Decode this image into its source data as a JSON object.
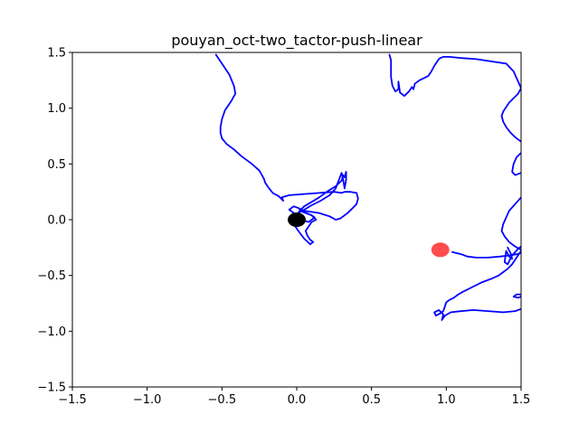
{
  "chart_data": {
    "type": "line",
    "title": "pouyan_oct-two_tactor-push-linear",
    "xlabel": "",
    "ylabel": "",
    "xlim": [
      -1.5,
      1.5
    ],
    "ylim": [
      -1.5,
      1.5
    ],
    "xticks": [
      -1.5,
      -1.0,
      -0.5,
      0.0,
      0.5,
      1.0,
      1.5
    ],
    "yticks": [
      -1.5,
      -1.0,
      -0.5,
      0.0,
      0.5,
      1.0,
      1.5
    ],
    "xtick_labels": [
      "−1.5",
      "−1.0",
      "−0.5",
      "0.0",
      "0.5",
      "1.0",
      "1.5"
    ],
    "ytick_labels": [
      "−1.5",
      "−1.0",
      "−0.5",
      "0.0",
      "0.5",
      "1.0",
      "1.5"
    ],
    "grid": false,
    "line_color": "#0000ff",
    "series": [
      {
        "x": [
          -0.54,
          -0.5,
          -0.45,
          -0.42,
          -0.41,
          -0.44,
          -0.48,
          -0.5,
          -0.51,
          -0.51,
          -0.5,
          -0.47,
          -0.42,
          -0.37,
          -0.3,
          -0.25,
          -0.22,
          -0.21,
          -0.19,
          -0.16,
          -0.12,
          -0.09,
          -0.1,
          -0.05,
          0.05,
          0.15,
          0.25,
          0.3,
          0.32,
          0.36,
          0.4,
          0.41,
          0.4,
          0.37,
          0.34,
          0.31,
          0.29,
          0.26,
          0.22,
          0.15,
          0.05,
          0.02,
          0.04,
          0.1,
          0.12,
          0.1,
          0.08,
          0.05,
          0.02,
          -0.02,
          -0.05
        ],
        "y": [
          1.48,
          1.4,
          1.3,
          1.2,
          1.13,
          1.06,
          0.98,
          0.9,
          0.83,
          0.78,
          0.73,
          0.68,
          0.63,
          0.57,
          0.5,
          0.44,
          0.37,
          0.33,
          0.29,
          0.24,
          0.21,
          0.17,
          0.2,
          0.22,
          0.23,
          0.24,
          0.25,
          0.24,
          0.25,
          0.25,
          0.24,
          0.19,
          0.14,
          0.1,
          0.06,
          0.03,
          0.01,
          0.0,
          0.03,
          0.06,
          0.08,
          0.09,
          0.07,
          0.04,
          0.02,
          0.0,
          -0.02,
          -0.01,
          0.02,
          0.06,
          0.09
        ]
      },
      {
        "x": [
          -0.05,
          -0.02,
          0.02,
          0.05,
          0.1,
          0.13,
          0.1,
          0.08,
          0.06,
          0.07,
          0.09,
          0.11,
          0.09,
          0.05,
          0.01,
          -0.02
        ],
        "y": [
          0.09,
          0.12,
          0.1,
          0.07,
          0.04,
          0.0,
          -0.02,
          -0.06,
          -0.1,
          -0.14,
          -0.18,
          -0.2,
          -0.22,
          -0.17,
          -0.1,
          -0.04
        ]
      },
      {
        "x": [
          0.0,
          0.02,
          0.05,
          0.1,
          0.15,
          0.2,
          0.26,
          0.3,
          0.31,
          0.32,
          0.33,
          0.33,
          0.32,
          0.31,
          0.3,
          0.28,
          0.26,
          0.22,
          0.16,
          0.1,
          0.05,
          0.01
        ],
        "y": [
          0.04,
          0.08,
          0.12,
          0.16,
          0.2,
          0.25,
          0.3,
          0.35,
          0.4,
          0.38,
          0.43,
          0.36,
          0.28,
          0.36,
          0.42,
          0.35,
          0.28,
          0.22,
          0.17,
          0.13,
          0.09,
          0.06
        ]
      },
      {
        "x": [
          0.62,
          0.63,
          0.63,
          0.63,
          0.64,
          0.66,
          0.68,
          0.68,
          0.69,
          0.72,
          0.75,
          0.77,
          0.78,
          0.79,
          0.8,
          0.82,
          0.85,
          0.88,
          0.9,
          0.92,
          0.94,
          0.95,
          0.96,
          0.98,
          1.02,
          1.1,
          1.2,
          1.3,
          1.4,
          1.45,
          1.47,
          1.5,
          1.48,
          1.45,
          1.42,
          1.4,
          1.38,
          1.37,
          1.38,
          1.4,
          1.43,
          1.46,
          1.5
        ],
        "y": [
          1.48,
          1.43,
          1.36,
          1.28,
          1.2,
          1.15,
          1.17,
          1.24,
          1.14,
          1.11,
          1.15,
          1.19,
          1.17,
          1.22,
          1.23,
          1.25,
          1.27,
          1.29,
          1.33,
          1.38,
          1.42,
          1.44,
          1.45,
          1.46,
          1.46,
          1.45,
          1.44,
          1.42,
          1.4,
          1.33,
          1.27,
          1.18,
          1.13,
          1.09,
          1.05,
          1.01,
          0.97,
          0.93,
          0.88,
          0.83,
          0.78,
          0.74,
          0.7
        ]
      },
      {
        "x": [
          1.5,
          1.47,
          1.45,
          1.44,
          1.46,
          1.5
        ],
        "y": [
          0.6,
          0.56,
          0.5,
          0.43,
          0.4,
          0.42
        ]
      },
      {
        "x": [
          1.5,
          1.46,
          1.42,
          1.4,
          1.38,
          1.37,
          1.39,
          1.42,
          1.46,
          1.5
        ],
        "y": [
          0.2,
          0.14,
          0.08,
          0.02,
          -0.04,
          -0.1,
          -0.15,
          -0.2,
          -0.24,
          -0.27
        ]
      },
      {
        "x": [
          1.41,
          1.43,
          1.44,
          1.42,
          1.4,
          1.39,
          1.41,
          1.44,
          1.48,
          1.5
        ],
        "y": [
          -0.25,
          -0.3,
          -0.35,
          -0.33,
          -0.28,
          -0.38,
          -0.4,
          -0.32,
          -0.26,
          -0.24
        ]
      },
      {
        "x": [
          1.04,
          1.07,
          1.1,
          1.14,
          1.2,
          1.28,
          1.36,
          1.42,
          1.47,
          1.5
        ],
        "y": [
          -0.29,
          -0.3,
          -0.31,
          -0.33,
          -0.34,
          -0.34,
          -0.33,
          -0.32,
          -0.31,
          -0.3
        ]
      },
      {
        "x": [
          1.5,
          1.47,
          1.44,
          1.41,
          1.38,
          1.35,
          1.3,
          1.24,
          1.18,
          1.12,
          1.08,
          1.05,
          1.02,
          1.0,
          0.99,
          0.98,
          0.96,
          0.93,
          0.92,
          0.95,
          0.98,
          0.97,
          0.99,
          1.03,
          1.1,
          1.18,
          1.28,
          1.38,
          1.46,
          1.5
        ],
        "y": [
          -0.28,
          -0.34,
          -0.4,
          -0.44,
          -0.47,
          -0.5,
          -0.53,
          -0.56,
          -0.6,
          -0.64,
          -0.67,
          -0.7,
          -0.72,
          -0.74,
          -0.78,
          -0.82,
          -0.84,
          -0.86,
          -0.83,
          -0.81,
          -0.85,
          -0.9,
          -0.86,
          -0.83,
          -0.82,
          -0.81,
          -0.82,
          -0.83,
          -0.82,
          -0.8
        ]
      },
      {
        "x": [
          1.5,
          1.47,
          1.45,
          1.48,
          1.5
        ],
        "y": [
          -0.67,
          -0.67,
          -0.69,
          -0.7,
          -0.69
        ]
      }
    ],
    "markers": [
      {
        "x": 0.0,
        "y": 0.0,
        "color": "#000000"
      },
      {
        "x": 0.96,
        "y": -0.27,
        "color": "#ff0000"
      }
    ]
  }
}
